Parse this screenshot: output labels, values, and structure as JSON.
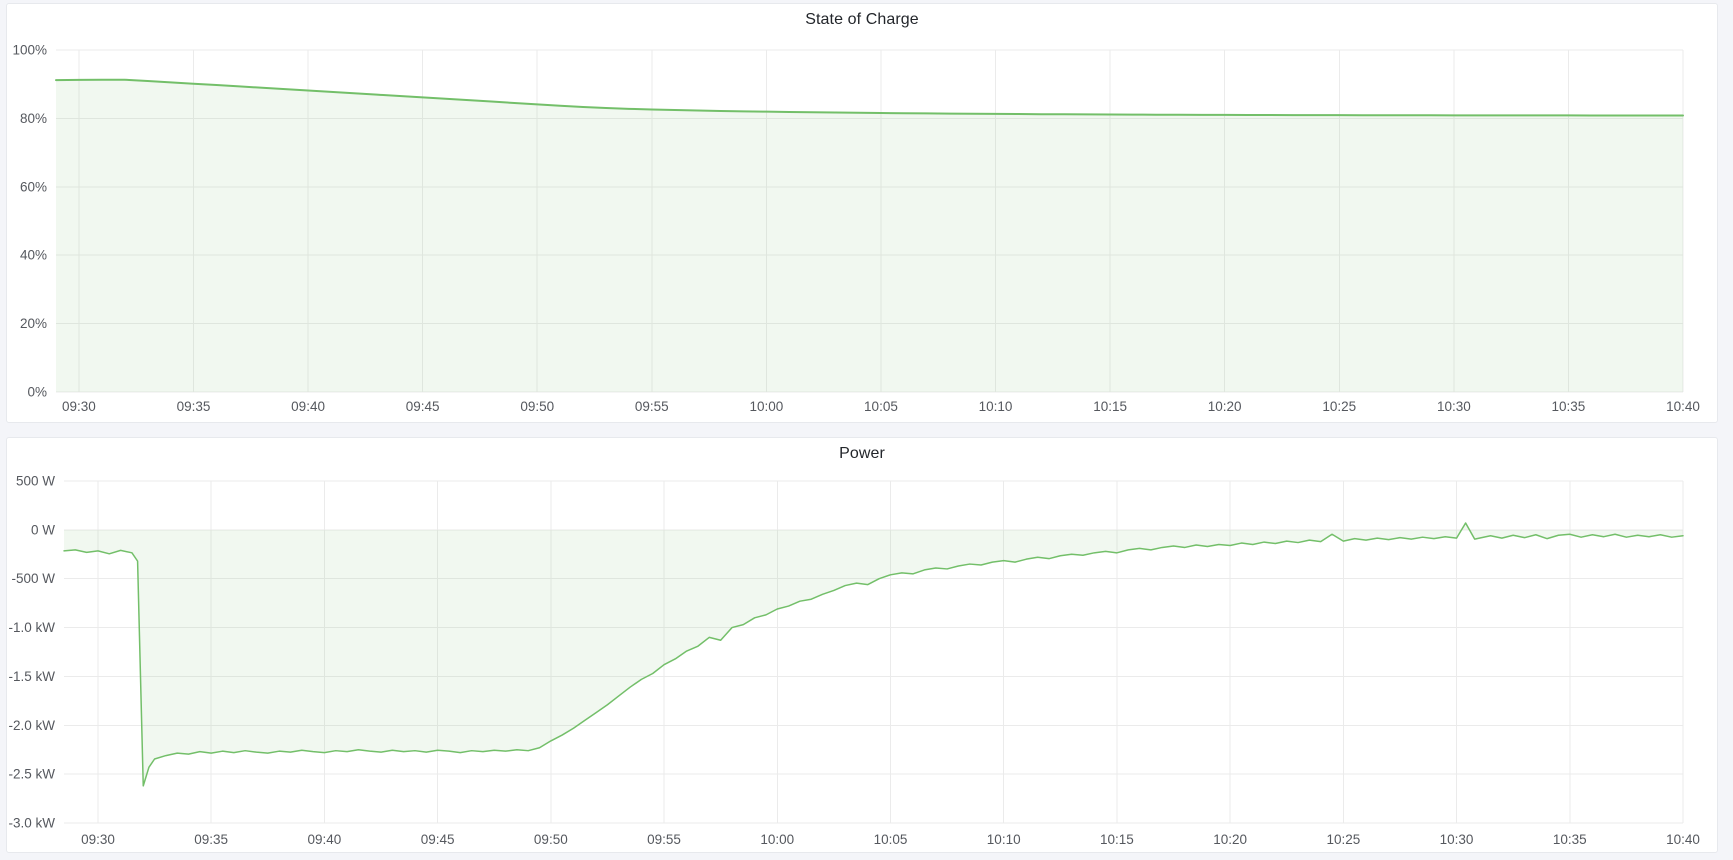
{
  "theme": {
    "page_bg": "#f4f5f9",
    "panel_bg": "#ffffff",
    "panel_border": "#e7e9ed",
    "title_color": "#23262b",
    "tick_color": "#55585e",
    "grid_color": "#ebebeb",
    "accent_green": "#73bf69",
    "fill_green": "rgba(115,191,105,0.10)"
  },
  "chart_data": [
    {
      "type": "area",
      "title": "State of Charge",
      "ylabel": "",
      "xlabel": "",
      "ylim": [
        0,
        100
      ],
      "xlim_minutes": [
        -1,
        70
      ],
      "grid": true,
      "legend": "none",
      "line_color": "#73bf69",
      "fill_color": "rgba(115,191,105,0.10)",
      "y_ticks": [
        {
          "v": 100,
          "label": "100%"
        },
        {
          "v": 80,
          "label": "80%"
        },
        {
          "v": 60,
          "label": "60%"
        },
        {
          "v": 40,
          "label": "40%"
        },
        {
          "v": 20,
          "label": "20%"
        },
        {
          "v": 0,
          "label": "0%"
        }
      ],
      "x_ticks": [
        {
          "t": 0,
          "label": "09:30"
        },
        {
          "t": 5,
          "label": "09:35"
        },
        {
          "t": 10,
          "label": "09:40"
        },
        {
          "t": 15,
          "label": "09:45"
        },
        {
          "t": 20,
          "label": "09:50"
        },
        {
          "t": 25,
          "label": "09:55"
        },
        {
          "t": 30,
          "label": "10:00"
        },
        {
          "t": 35,
          "label": "10:05"
        },
        {
          "t": 40,
          "label": "10:10"
        },
        {
          "t": 45,
          "label": "10:15"
        },
        {
          "t": 50,
          "label": "10:20"
        },
        {
          "t": 55,
          "label": "10:25"
        },
        {
          "t": 60,
          "label": "10:30"
        },
        {
          "t": 65,
          "label": "10:35"
        },
        {
          "t": 70,
          "label": "10:40"
        }
      ],
      "series": [
        {
          "name": "State of Charge",
          "unit": "%",
          "points": [
            [
              -1,
              91.2
            ],
            [
              0,
              91.25
            ],
            [
              1,
              91.3
            ],
            [
              2,
              91.3
            ],
            [
              3,
              90.95
            ],
            [
              4,
              90.55
            ],
            [
              5,
              90.15
            ],
            [
              6,
              89.75
            ],
            [
              7,
              89.35
            ],
            [
              8,
              88.95
            ],
            [
              9,
              88.55
            ],
            [
              10,
              88.15
            ],
            [
              11,
              87.75
            ],
            [
              12,
              87.35
            ],
            [
              13,
              86.95
            ],
            [
              14,
              86.55
            ],
            [
              15,
              86.15
            ],
            [
              16,
              85.75
            ],
            [
              17,
              85.35
            ],
            [
              18,
              84.95
            ],
            [
              19,
              84.5
            ],
            [
              20,
              84.1
            ],
            [
              21,
              83.7
            ],
            [
              22,
              83.35
            ],
            [
              23,
              83.05
            ],
            [
              24,
              82.8
            ],
            [
              25,
              82.6
            ],
            [
              26,
              82.45
            ],
            [
              27,
              82.3
            ],
            [
              28,
              82.18
            ],
            [
              29,
              82.07
            ],
            [
              30,
              81.97
            ],
            [
              31,
              81.88
            ],
            [
              32,
              81.8
            ],
            [
              33,
              81.72
            ],
            [
              34,
              81.65
            ],
            [
              35,
              81.58
            ],
            [
              36,
              81.52
            ],
            [
              37,
              81.46
            ],
            [
              38,
              81.41
            ],
            [
              39,
              81.36
            ],
            [
              40,
              81.31
            ],
            [
              41,
              81.27
            ],
            [
              42,
              81.23
            ],
            [
              43,
              81.2
            ],
            [
              44,
              81.17
            ],
            [
              45,
              81.14
            ],
            [
              46,
              81.11
            ],
            [
              47,
              81.08
            ],
            [
              48,
              81.06
            ],
            [
              49,
              81.04
            ],
            [
              50,
              81.02
            ],
            [
              51,
              81.0
            ],
            [
              52,
              80.98
            ],
            [
              53,
              80.97
            ],
            [
              54,
              80.96
            ],
            [
              55,
              80.95
            ],
            [
              56,
              80.94
            ],
            [
              57,
              80.93
            ],
            [
              58,
              80.92
            ],
            [
              59,
              80.91
            ],
            [
              60,
              80.9
            ],
            [
              61,
              80.89
            ],
            [
              62,
              80.88
            ],
            [
              63,
              80.88
            ],
            [
              64,
              80.87
            ],
            [
              65,
              80.87
            ],
            [
              66,
              80.86
            ],
            [
              67,
              80.86
            ],
            [
              68,
              80.85
            ],
            [
              69,
              80.85
            ],
            [
              70,
              80.85
            ]
          ]
        }
      ]
    },
    {
      "type": "area",
      "title": "Power",
      "ylabel": "",
      "xlabel": "",
      "ylim": [
        -3000,
        500
      ],
      "xlim_minutes": [
        -1.5,
        70
      ],
      "grid": true,
      "legend": "none",
      "line_color": "#73bf69",
      "fill_color": "rgba(115,191,105,0.10)",
      "y_ticks": [
        {
          "v": 500,
          "label": "500 W"
        },
        {
          "v": 0,
          "label": "0 W"
        },
        {
          "v": -500,
          "label": "-500 W"
        },
        {
          "v": -1000,
          "label": "-1.0 kW"
        },
        {
          "v": -1500,
          "label": "-1.5 kW"
        },
        {
          "v": -2000,
          "label": "-2.0 kW"
        },
        {
          "v": -2500,
          "label": "-2.5 kW"
        },
        {
          "v": -3000,
          "label": "-3.0 kW"
        }
      ],
      "x_ticks": [
        {
          "t": 0,
          "label": "09:30"
        },
        {
          "t": 5,
          "label": "09:35"
        },
        {
          "t": 10,
          "label": "09:40"
        },
        {
          "t": 15,
          "label": "09:45"
        },
        {
          "t": 20,
          "label": "09:50"
        },
        {
          "t": 25,
          "label": "09:55"
        },
        {
          "t": 30,
          "label": "10:00"
        },
        {
          "t": 35,
          "label": "10:05"
        },
        {
          "t": 40,
          "label": "10:10"
        },
        {
          "t": 45,
          "label": "10:15"
        },
        {
          "t": 50,
          "label": "10:20"
        },
        {
          "t": 55,
          "label": "10:25"
        },
        {
          "t": 60,
          "label": "10:30"
        },
        {
          "t": 65,
          "label": "10:35"
        },
        {
          "t": 70,
          "label": "10:40"
        }
      ],
      "series": [
        {
          "name": "Power",
          "unit": "W",
          "points": [
            [
              -1.5,
              -215
            ],
            [
              -1,
              -205
            ],
            [
              -0.5,
              -230
            ],
            [
              0,
              -215
            ],
            [
              0.5,
              -245
            ],
            [
              1,
              -210
            ],
            [
              1.5,
              -235
            ],
            [
              1.75,
              -320
            ],
            [
              2,
              -2620
            ],
            [
              2.25,
              -2430
            ],
            [
              2.5,
              -2345
            ],
            [
              3,
              -2310
            ],
            [
              3.5,
              -2285
            ],
            [
              4,
              -2295
            ],
            [
              4.5,
              -2270
            ],
            [
              5,
              -2285
            ],
            [
              5.5,
              -2265
            ],
            [
              6,
              -2280
            ],
            [
              6.5,
              -2260
            ],
            [
              7,
              -2275
            ],
            [
              7.5,
              -2285
            ],
            [
              8,
              -2265
            ],
            [
              8.5,
              -2275
            ],
            [
              9,
              -2255
            ],
            [
              9.5,
              -2270
            ],
            [
              10,
              -2280
            ],
            [
              10.5,
              -2260
            ],
            [
              11,
              -2270
            ],
            [
              11.5,
              -2250
            ],
            [
              12,
              -2265
            ],
            [
              12.5,
              -2275
            ],
            [
              13,
              -2255
            ],
            [
              13.5,
              -2270
            ],
            [
              14,
              -2260
            ],
            [
              14.5,
              -2275
            ],
            [
              15,
              -2255
            ],
            [
              15.5,
              -2265
            ],
            [
              16,
              -2280
            ],
            [
              16.5,
              -2260
            ],
            [
              17,
              -2270
            ],
            [
              17.5,
              -2255
            ],
            [
              18,
              -2265
            ],
            [
              18.5,
              -2250
            ],
            [
              19,
              -2260
            ],
            [
              19.5,
              -2230
            ],
            [
              20,
              -2160
            ],
            [
              20.5,
              -2100
            ],
            [
              21,
              -2030
            ],
            [
              21.5,
              -1950
            ],
            [
              22,
              -1870
            ],
            [
              22.5,
              -1790
            ],
            [
              23,
              -1700
            ],
            [
              23.5,
              -1610
            ],
            [
              24,
              -1530
            ],
            [
              24.5,
              -1470
            ],
            [
              25,
              -1380
            ],
            [
              25.5,
              -1320
            ],
            [
              26,
              -1240
            ],
            [
              26.5,
              -1190
            ],
            [
              27,
              -1100
            ],
            [
              27.5,
              -1130
            ],
            [
              28,
              -1000
            ],
            [
              28.5,
              -970
            ],
            [
              29,
              -900
            ],
            [
              29.5,
              -870
            ],
            [
              30,
              -810
            ],
            [
              30.5,
              -780
            ],
            [
              31,
              -730
            ],
            [
              31.5,
              -710
            ],
            [
              32,
              -660
            ],
            [
              32.5,
              -620
            ],
            [
              33,
              -570
            ],
            [
              33.5,
              -545
            ],
            [
              34,
              -560
            ],
            [
              34.5,
              -500
            ],
            [
              35,
              -460
            ],
            [
              35.5,
              -440
            ],
            [
              36,
              -450
            ],
            [
              36.5,
              -410
            ],
            [
              37,
              -390
            ],
            [
              37.5,
              -400
            ],
            [
              38,
              -370
            ],
            [
              38.5,
              -350
            ],
            [
              39,
              -360
            ],
            [
              39.5,
              -330
            ],
            [
              40,
              -315
            ],
            [
              40.5,
              -330
            ],
            [
              41,
              -300
            ],
            [
              41.5,
              -280
            ],
            [
              42,
              -295
            ],
            [
              42.5,
              -265
            ],
            [
              43,
              -250
            ],
            [
              43.5,
              -260
            ],
            [
              44,
              -235
            ],
            [
              44.5,
              -220
            ],
            [
              45,
              -235
            ],
            [
              45.5,
              -205
            ],
            [
              46,
              -190
            ],
            [
              46.5,
              -205
            ],
            [
              47,
              -180
            ],
            [
              47.5,
              -165
            ],
            [
              48,
              -180
            ],
            [
              48.5,
              -155
            ],
            [
              49,
              -170
            ],
            [
              49.5,
              -150
            ],
            [
              50,
              -160
            ],
            [
              50.5,
              -135
            ],
            [
              51,
              -150
            ],
            [
              51.5,
              -125
            ],
            [
              52,
              -140
            ],
            [
              52.5,
              -115
            ],
            [
              53,
              -130
            ],
            [
              53.5,
              -105
            ],
            [
              54,
              -120
            ],
            [
              54.5,
              -45
            ],
            [
              55,
              -115
            ],
            [
              55.5,
              -90
            ],
            [
              56,
              -105
            ],
            [
              56.5,
              -85
            ],
            [
              57,
              -100
            ],
            [
              57.5,
              -80
            ],
            [
              58,
              -95
            ],
            [
              58.5,
              -75
            ],
            [
              59,
              -90
            ],
            [
              59.5,
              -70
            ],
            [
              60,
              -85
            ],
            [
              60.4,
              70
            ],
            [
              60.8,
              -95
            ],
            [
              61.5,
              -60
            ],
            [
              62,
              -85
            ],
            [
              62.5,
              -55
            ],
            [
              63,
              -80
            ],
            [
              63.5,
              -50
            ],
            [
              64,
              -90
            ],
            [
              64.5,
              -55
            ],
            [
              65,
              -45
            ],
            [
              65.5,
              -75
            ],
            [
              66,
              -50
            ],
            [
              66.5,
              -70
            ],
            [
              67,
              -45
            ],
            [
              67.5,
              -75
            ],
            [
              68,
              -55
            ],
            [
              68.5,
              -70
            ],
            [
              69,
              -50
            ],
            [
              69.5,
              -75
            ],
            [
              70,
              -60
            ]
          ]
        }
      ]
    }
  ]
}
